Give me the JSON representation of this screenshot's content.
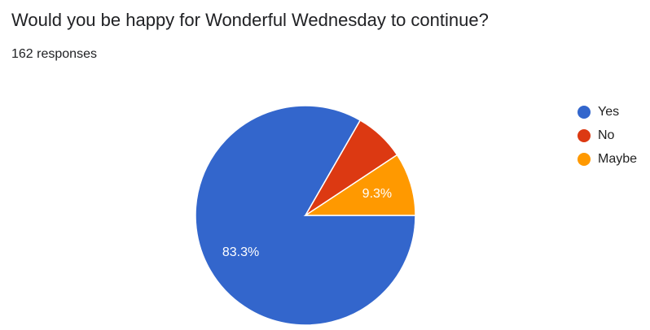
{
  "chart_data": {
    "type": "pie",
    "title": "Would you be happy for Wonderful Wednesday to continue?",
    "subtitle": "162 responses",
    "categories": [
      "Yes",
      "No",
      "Maybe"
    ],
    "values": [
      83.3,
      7.4,
      9.3
    ],
    "value_labels": [
      "83.3%",
      null,
      "9.3%"
    ],
    "colors": [
      "#3366cc",
      "#dc3912",
      "#ff9900"
    ],
    "legend": "right"
  }
}
